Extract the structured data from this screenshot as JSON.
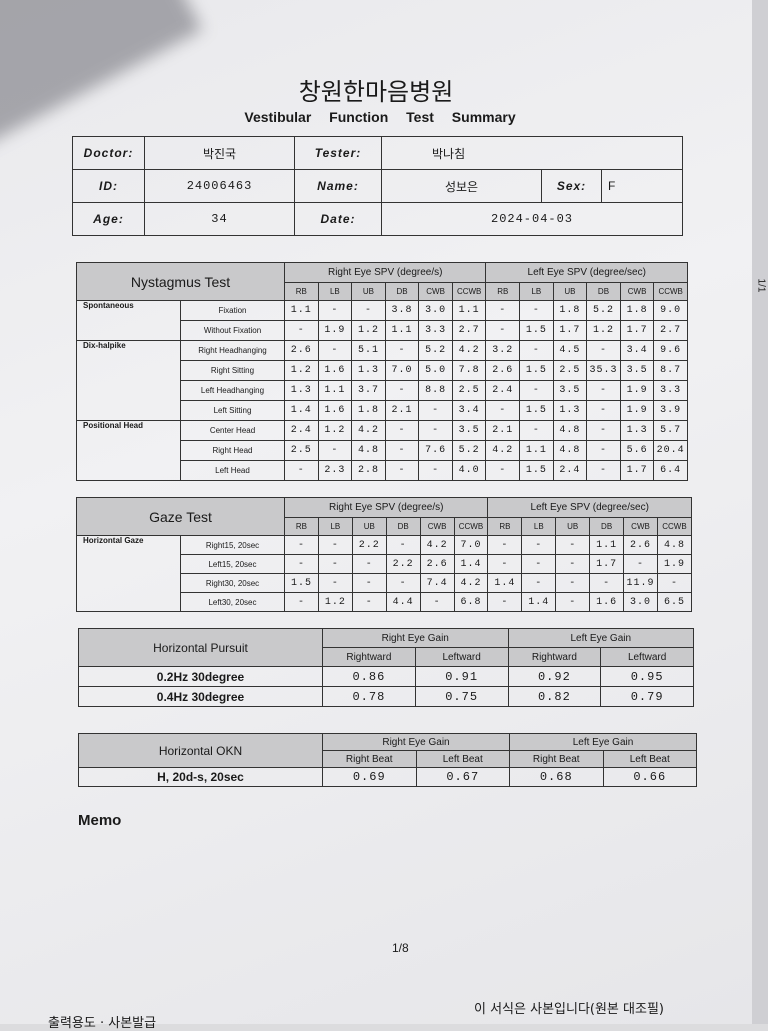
{
  "hospital_name": "창원한마음병원",
  "report_title": "Vestibular Function Test Summary",
  "patient_info": {
    "doctor_label": "Doctor:",
    "doctor": "박진국",
    "tester_label": "Tester:",
    "tester": "박나침",
    "id_label": "ID:",
    "id": "24006463",
    "name_label": "Name:",
    "name": "성보은",
    "sex_label": "Sex:",
    "sex": "F",
    "age_label": "Age:",
    "age": "34",
    "date_label": "Date:",
    "date": "2024-04-03"
  },
  "nystagmus": {
    "title": "Nystagmus Test",
    "right_header": "Right Eye SPV (degree/s)",
    "left_header": "Left Eye SPV (degree/sec)",
    "columns": [
      "RB",
      "LB",
      "UB",
      "DB",
      "CWB",
      "CCWB"
    ],
    "groups": [
      {
        "label": "Spontaneous",
        "rows": [
          {
            "cond": "Fixation",
            "right": [
              "1.1",
              "-",
              "-",
              "3.8",
              "3.0",
              "1.1"
            ],
            "left": [
              "-",
              "-",
              "1.8",
              "5.2",
              "1.8",
              "9.0"
            ]
          },
          {
            "cond": "Without Fixation",
            "right": [
              "-",
              "1.9",
              "1.2",
              "1.1",
              "3.3",
              "2.7"
            ],
            "left": [
              "-",
              "1.5",
              "1.7",
              "1.2",
              "1.7",
              "2.7"
            ]
          }
        ]
      },
      {
        "label": "Dix-halpike",
        "rows": [
          {
            "cond": "Right Headhanging",
            "right": [
              "2.6",
              "-",
              "5.1",
              "-",
              "5.2",
              "4.2"
            ],
            "left": [
              "3.2",
              "-",
              "4.5",
              "-",
              "3.4",
              "9.6"
            ]
          },
          {
            "cond": "Right Sitting",
            "right": [
              "1.2",
              "1.6",
              "1.3",
              "7.0",
              "5.0",
              "7.8"
            ],
            "left": [
              "2.6",
              "1.5",
              "2.5",
              "35.3",
              "3.5",
              "8.7"
            ]
          },
          {
            "cond": "Left Headhanging",
            "right": [
              "1.3",
              "1.1",
              "3.7",
              "-",
              "8.8",
              "2.5"
            ],
            "left": [
              "2.4",
              "-",
              "3.5",
              "-",
              "1.9",
              "3.3"
            ]
          },
          {
            "cond": "Left Sitting",
            "right": [
              "1.4",
              "1.6",
              "1.8",
              "2.1",
              "-",
              "3.4"
            ],
            "left": [
              "-",
              "1.5",
              "1.3",
              "-",
              "1.9",
              "3.9"
            ]
          }
        ]
      },
      {
        "label": "Positional Head",
        "rows": [
          {
            "cond": "Center Head",
            "right": [
              "2.4",
              "1.2",
              "4.2",
              "-",
              "-",
              "3.5"
            ],
            "left": [
              "2.1",
              "-",
              "4.8",
              "-",
              "1.3",
              "5.7"
            ]
          },
          {
            "cond": "Right Head",
            "right": [
              "2.5",
              "-",
              "4.8",
              "-",
              "7.6",
              "5.2"
            ],
            "left": [
              "4.2",
              "1.1",
              "4.8",
              "-",
              "5.6",
              "20.4"
            ]
          },
          {
            "cond": "Left Head",
            "right": [
              "-",
              "2.3",
              "2.8",
              "-",
              "-",
              "4.0"
            ],
            "left": [
              "-",
              "1.5",
              "2.4",
              "-",
              "1.7",
              "6.4"
            ]
          }
        ]
      }
    ]
  },
  "gaze": {
    "title": "Gaze Test",
    "right_header": "Right Eye SPV (degree/s)",
    "left_header": "Left Eye SPV (degree/sec)",
    "columns": [
      "RB",
      "LB",
      "UB",
      "DB",
      "CWB",
      "CCWB"
    ],
    "groups": [
      {
        "label": "Horizontal Gaze",
        "rows": [
          {
            "cond": "Right15, 20sec",
            "right": [
              "-",
              "-",
              "2.2",
              "-",
              "4.2",
              "7.0"
            ],
            "left": [
              "-",
              "-",
              "-",
              "1.1",
              "2.6",
              "4.8"
            ]
          },
          {
            "cond": "Left15, 20sec",
            "right": [
              "-",
              "-",
              "-",
              "2.2",
              "2.6",
              "1.4"
            ],
            "left": [
              "-",
              "-",
              "-",
              "1.7",
              "-",
              "1.9"
            ]
          },
          {
            "cond": "Right30, 20sec",
            "right": [
              "1.5",
              "-",
              "-",
              "-",
              "7.4",
              "4.2"
            ],
            "left": [
              "1.4",
              "-",
              "-",
              "-",
              "11.9",
              "-"
            ]
          },
          {
            "cond": "Left30, 20sec",
            "right": [
              "-",
              "1.2",
              "-",
              "4.4",
              "-",
              "6.8"
            ],
            "left": [
              "-",
              "1.4",
              "-",
              "1.6",
              "3.0",
              "6.5"
            ]
          }
        ]
      }
    ]
  },
  "pursuit": {
    "title": "Horizontal Pursuit",
    "right_header": "Right Eye Gain",
    "left_header": "Left Eye Gain",
    "columns": [
      "Rightward",
      "Leftward",
      "Rightward",
      "Leftward"
    ],
    "rows": [
      {
        "cond": "0.2Hz 30degree",
        "values": [
          "0.86",
          "0.91",
          "0.92",
          "0.95"
        ]
      },
      {
        "cond": "0.4Hz 30degree",
        "values": [
          "0.78",
          "0.75",
          "0.82",
          "0.79"
        ]
      }
    ]
  },
  "okn": {
    "title": "Horizontal OKN",
    "right_header": "Right Eye Gain",
    "left_header": "Left Eye Gain",
    "columns": [
      "Right Beat",
      "Left Beat",
      "Right Beat",
      "Left Beat"
    ],
    "rows": [
      {
        "cond": "H, 20d-s, 20sec",
        "values": [
          "0.69",
          "0.67",
          "0.68",
          "0.66"
        ]
      }
    ]
  },
  "memo_label": "Memo",
  "page_number": "1/8",
  "footer_note": "이 서식은 사본입니다(원본 대조필)",
  "footer_left": "출력용도 · 사본발급",
  "side_page": "1/1"
}
